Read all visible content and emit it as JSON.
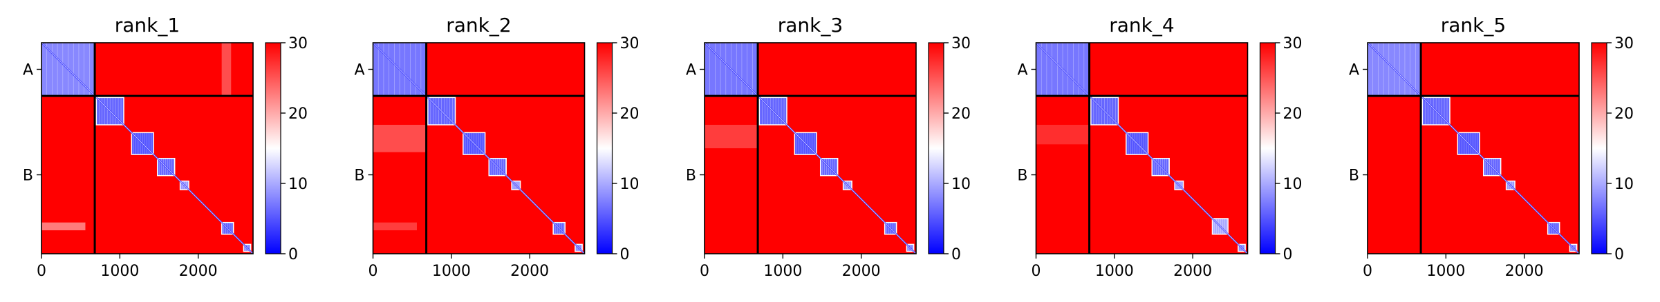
{
  "figure": {
    "layout": "1x5 grid of heatmap panels, each with its own vertical colorbar",
    "colormap": {
      "low": "#0000ff",
      "mid": "#ffffff",
      "high": "#ff0000"
    },
    "divider_color": "#000000"
  },
  "chart_data": [
    {
      "type": "heatmap",
      "title": "rank_1",
      "xlim": [
        0,
        2700
      ],
      "xticks": [
        0,
        1000,
        2000
      ],
      "ytick_labels": [
        "A",
        "B"
      ],
      "segments": [
        {
          "name": "A",
          "start": 0,
          "end": 680
        },
        {
          "name": "B",
          "start": 680,
          "end": 2700
        }
      ],
      "colorbar": {
        "min": 0,
        "max": 30,
        "ticks": [
          0,
          10,
          20,
          30
        ]
      },
      "blocks": [
        {
          "start": 0,
          "end": 680,
          "value": 8
        },
        {
          "start": 700,
          "end": 1050,
          "value": 6
        },
        {
          "start": 1150,
          "end": 1430,
          "value": 5
        },
        {
          "start": 1480,
          "end": 1700,
          "value": 6
        },
        {
          "start": 1770,
          "end": 1880,
          "value": 9
        },
        {
          "start": 2300,
          "end": 2450,
          "value": 6
        },
        {
          "start": 2580,
          "end": 2670,
          "value": 8
        }
      ],
      "background_value": 30,
      "diagonal_value": 3,
      "offdiag_features": [
        {
          "rows": [
            0,
            680
          ],
          "cols": [
            2300,
            2420
          ],
          "value": 25
        },
        {
          "rows": [
            2300,
            2400
          ],
          "cols": [
            0,
            560
          ],
          "value": 22
        }
      ]
    },
    {
      "type": "heatmap",
      "title": "rank_2",
      "xlim": [
        0,
        2700
      ],
      "xticks": [
        0,
        1000,
        2000
      ],
      "ytick_labels": [
        "A",
        "B"
      ],
      "segments": [
        {
          "name": "A",
          "start": 0,
          "end": 680
        },
        {
          "name": "B",
          "start": 680,
          "end": 2700
        }
      ],
      "colorbar": {
        "min": 0,
        "max": 30,
        "ticks": [
          0,
          10,
          20,
          30
        ]
      },
      "blocks": [
        {
          "start": 0,
          "end": 680,
          "value": 7
        },
        {
          "start": 700,
          "end": 1050,
          "value": 6
        },
        {
          "start": 1150,
          "end": 1430,
          "value": 5
        },
        {
          "start": 1480,
          "end": 1700,
          "value": 6
        },
        {
          "start": 1770,
          "end": 1880,
          "value": 9
        },
        {
          "start": 2300,
          "end": 2450,
          "value": 6
        },
        {
          "start": 2580,
          "end": 2670,
          "value": 8
        }
      ],
      "background_value": 30,
      "diagonal_value": 3,
      "offdiag_features": [
        {
          "rows": [
            1050,
            1400
          ],
          "cols": [
            0,
            680
          ],
          "value": 25
        },
        {
          "rows": [
            2300,
            2400
          ],
          "cols": [
            0,
            560
          ],
          "value": 26
        }
      ]
    },
    {
      "type": "heatmap",
      "title": "rank_3",
      "xlim": [
        0,
        2700
      ],
      "xticks": [
        0,
        1000,
        2000
      ],
      "ytick_labels": [
        "A",
        "B"
      ],
      "segments": [
        {
          "name": "A",
          "start": 0,
          "end": 680
        },
        {
          "name": "B",
          "start": 680,
          "end": 2700
        }
      ],
      "colorbar": {
        "min": 0,
        "max": 30,
        "ticks": [
          0,
          10,
          20,
          30
        ]
      },
      "blocks": [
        {
          "start": 0,
          "end": 680,
          "value": 7
        },
        {
          "start": 700,
          "end": 1050,
          "value": 6
        },
        {
          "start": 1150,
          "end": 1430,
          "value": 5
        },
        {
          "start": 1480,
          "end": 1700,
          "value": 6
        },
        {
          "start": 1770,
          "end": 1880,
          "value": 9
        },
        {
          "start": 2300,
          "end": 2450,
          "value": 6
        },
        {
          "start": 2580,
          "end": 2670,
          "value": 8
        }
      ],
      "background_value": 30,
      "diagonal_value": 3,
      "offdiag_features": [
        {
          "rows": [
            1050,
            1350
          ],
          "cols": [
            0,
            680
          ],
          "value": 26
        }
      ]
    },
    {
      "type": "heatmap",
      "title": "rank_4",
      "xlim": [
        0,
        2700
      ],
      "xticks": [
        0,
        1000,
        2000
      ],
      "ytick_labels": [
        "A",
        "B"
      ],
      "segments": [
        {
          "name": "A",
          "start": 0,
          "end": 680
        },
        {
          "name": "B",
          "start": 680,
          "end": 2700
        }
      ],
      "colorbar": {
        "min": 0,
        "max": 30,
        "ticks": [
          0,
          10,
          20,
          30
        ]
      },
      "blocks": [
        {
          "start": 0,
          "end": 680,
          "value": 7
        },
        {
          "start": 700,
          "end": 1050,
          "value": 6
        },
        {
          "start": 1150,
          "end": 1430,
          "value": 5
        },
        {
          "start": 1480,
          "end": 1700,
          "value": 6
        },
        {
          "start": 1770,
          "end": 1880,
          "value": 9
        },
        {
          "start": 2250,
          "end": 2450,
          "value": 10
        },
        {
          "start": 2580,
          "end": 2670,
          "value": 8
        }
      ],
      "background_value": 30,
      "diagonal_value": 3,
      "offdiag_features": [
        {
          "rows": [
            1050,
            1300
          ],
          "cols": [
            0,
            680
          ],
          "value": 27
        }
      ]
    },
    {
      "type": "heatmap",
      "title": "rank_5",
      "xlim": [
        0,
        2700
      ],
      "xticks": [
        0,
        1000,
        2000
      ],
      "ytick_labels": [
        "A",
        "B"
      ],
      "segments": [
        {
          "name": "A",
          "start": 0,
          "end": 680
        },
        {
          "name": "B",
          "start": 680,
          "end": 2700
        }
      ],
      "colorbar": {
        "min": 0,
        "max": 30,
        "ticks": [
          0,
          10,
          20,
          30
        ]
      },
      "blocks": [
        {
          "start": 0,
          "end": 680,
          "value": 8
        },
        {
          "start": 700,
          "end": 1050,
          "value": 6
        },
        {
          "start": 1150,
          "end": 1430,
          "value": 5
        },
        {
          "start": 1480,
          "end": 1700,
          "value": 6
        },
        {
          "start": 1770,
          "end": 1880,
          "value": 9
        },
        {
          "start": 2300,
          "end": 2450,
          "value": 6
        },
        {
          "start": 2580,
          "end": 2670,
          "value": 8
        }
      ],
      "background_value": 30,
      "diagonal_value": 3,
      "offdiag_features": []
    }
  ]
}
